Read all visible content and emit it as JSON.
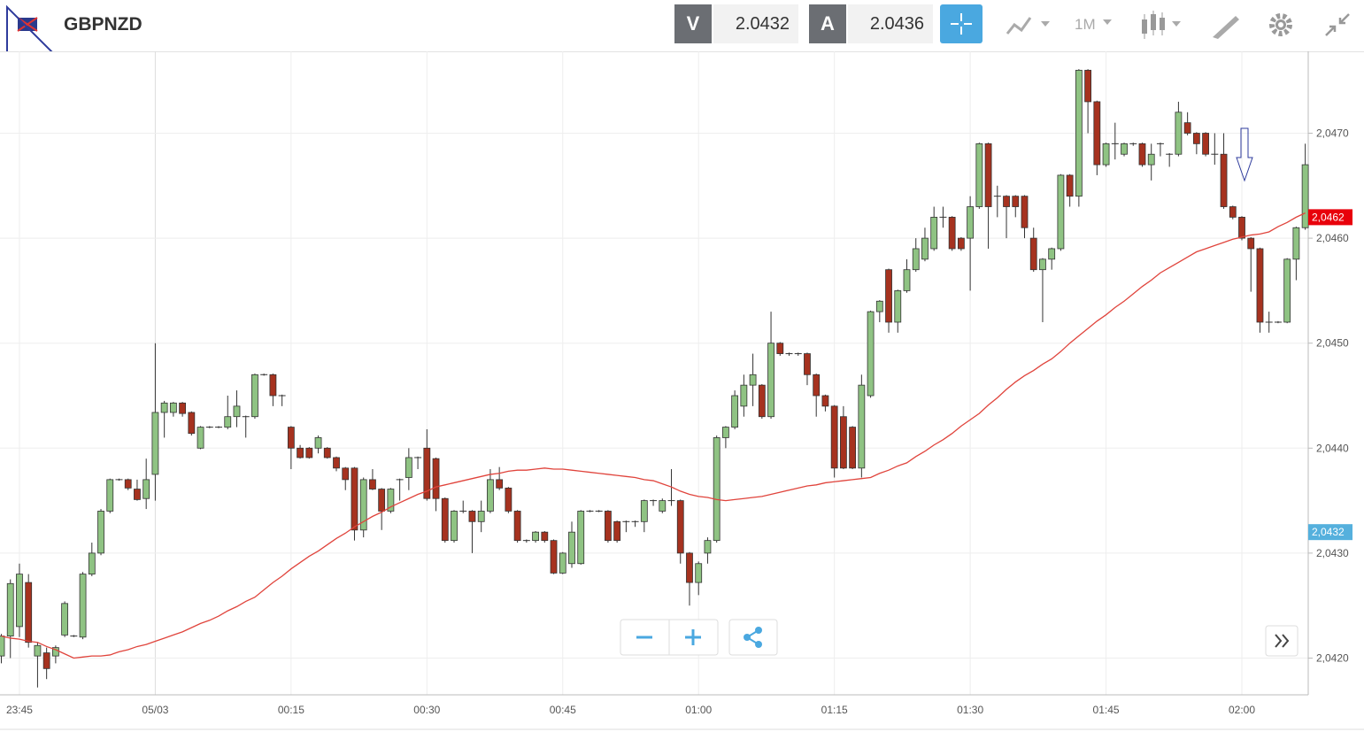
{
  "header": {
    "symbol": "GBPNZD",
    "bid_label": "V",
    "bid": "2.0432",
    "ask_label": "A",
    "ask": "2.0436",
    "timeframe": "1M"
  },
  "chart_data": {
    "type": "candlestick",
    "categories": [
      null,
      null,
      "23:45",
      null,
      null,
      null,
      null,
      null,
      null,
      null,
      null,
      null,
      null,
      null,
      null,
      null,
      null,
      "05/03",
      null,
      null,
      null,
      null,
      null,
      null,
      null,
      null,
      null,
      null,
      null,
      null,
      null,
      null,
      "00:15",
      null,
      null,
      null,
      null,
      null,
      null,
      null,
      null,
      null,
      null,
      null,
      null,
      null,
      null,
      "00:30",
      null,
      null,
      null,
      null,
      null,
      null,
      null,
      null,
      null,
      null,
      null,
      null,
      null,
      null,
      "00:45",
      null,
      null,
      null,
      null,
      null,
      null,
      null,
      null,
      null,
      null,
      null,
      null,
      null,
      null,
      "01:00",
      null,
      null,
      null,
      null,
      null,
      null,
      null,
      null,
      null,
      null,
      null,
      null,
      null,
      null,
      "01:15",
      null,
      null,
      null,
      null,
      null,
      null,
      null,
      null,
      null,
      null,
      null,
      null,
      null,
      null,
      "01:30",
      null,
      null,
      null,
      null,
      null,
      null,
      null,
      null,
      null,
      null,
      null,
      null,
      null,
      null,
      "01:45",
      null,
      null,
      null,
      null,
      null,
      null,
      null,
      null,
      null,
      null,
      null,
      null,
      null,
      null,
      "02:00",
      null,
      null,
      null,
      null,
      null,
      null,
      null
    ],
    "open": [
      2.04202,
      2.04221,
      2.0423,
      2.04272,
      2.04202,
      2.04205,
      2.04202,
      2.04222,
      2.04221,
      2.0422,
      2.0428,
      2.043,
      2.0434,
      2.0437,
      2.0437,
      2.04361,
      2.04352,
      2.04375,
      2.04434,
      2.04434,
      2.04443,
      2.04434,
      2.044,
      2.0442,
      2.0442,
      2.0442,
      2.0443,
      2.0443,
      2.0443,
      2.0447,
      2.0447,
      2.0445,
      2.0442,
      2.044,
      2.044,
      2.044,
      2.044,
      2.04391,
      2.04381,
      2.04381,
      2.04322,
      2.0437,
      2.04361,
      2.0434,
      2.0437,
      2.04372,
      2.04391,
      2.044,
      2.0439,
      2.04352,
      2.04312,
      2.0434,
      2.0434,
      2.0433,
      2.0434,
      2.0437,
      2.04362,
      2.0434,
      2.04312,
      2.04312,
      2.0432,
      2.04312,
      2.04281,
      2.0429,
      2.0429,
      2.0434,
      2.0434,
      2.0434,
      2.0433,
      2.0433,
      2.0433,
      2.0433,
      2.0435,
      2.0434,
      2.0435,
      2.0435,
      2.043,
      2.04272,
      2.043,
      2.04312,
      2.0441,
      2.0442,
      2.0444,
      2.0446,
      2.0446,
      2.0443,
      2.045,
      2.0449,
      2.0449,
      2.0449,
      2.0447,
      2.0445,
      2.0444,
      2.0443,
      2.0442,
      2.04381,
      2.0445,
      2.0453,
      2.0457,
      2.0452,
      2.0455,
      2.0457,
      2.0458,
      2.0459,
      2.0462,
      2.0462,
      2.046,
      2.046,
      2.0463,
      2.0469,
      2.0464,
      2.0464,
      2.0464,
      2.0464,
      2.046,
      2.0457,
      2.0458,
      2.0459,
      2.0466,
      2.0464,
      2.0476,
      2.0473,
      2.0467,
      2.0469,
      2.0468,
      2.0469,
      2.0469,
      2.0467,
      2.0469,
      2.0468,
      2.0468,
      2.0471,
      2.047,
      2.047,
      2.0468,
      2.0468,
      2.0463,
      2.0462,
      2.046,
      2.0459,
      2.0452,
      2.0452,
      2.0452,
      2.0458,
      2.0461
    ],
    "high": [
      2.04223,
      2.04275,
      2.0429,
      2.0428,
      2.04215,
      2.0421,
      2.04212,
      2.04254,
      2.04222,
      2.04282,
      2.0431,
      2.04342,
      2.04371,
      2.04371,
      2.04371,
      2.0437,
      2.0439,
      2.045,
      2.04445,
      2.04444,
      2.04444,
      2.04435,
      2.04421,
      2.04421,
      2.04421,
      2.0445,
      2.04455,
      2.04431,
      2.04471,
      2.04471,
      2.04471,
      2.04451,
      2.04421,
      2.04403,
      2.04401,
      2.04412,
      2.04401,
      2.04392,
      2.04382,
      2.04382,
      2.04372,
      2.0438,
      2.04362,
      2.04362,
      2.04371,
      2.044,
      2.04392,
      2.04418,
      2.04391,
      2.04353,
      2.04341,
      2.0435,
      2.04341,
      2.0435,
      2.0438,
      2.04382,
      2.04363,
      2.04341,
      2.04313,
      2.04321,
      2.04321,
      2.04313,
      2.04301,
      2.0433,
      2.04341,
      2.04341,
      2.04341,
      2.04341,
      2.04331,
      2.04331,
      2.04331,
      2.04351,
      2.04351,
      2.04352,
      2.0438,
      2.04351,
      2.04301,
      2.04292,
      2.04315,
      2.04412,
      2.04421,
      2.04455,
      2.0447,
      2.0449,
      2.04461,
      2.0453,
      2.04501,
      2.04491,
      2.04491,
      2.04491,
      2.04471,
      2.04451,
      2.04441,
      2.0444,
      2.04421,
      2.0447,
      2.04531,
      2.04541,
      2.04571,
      2.04551,
      2.0458,
      2.046,
      2.0461,
      2.0463,
      2.0463,
      2.04621,
      2.04601,
      2.0464,
      2.04691,
      2.04691,
      2.0465,
      2.04641,
      2.04641,
      2.04641,
      2.0461,
      2.04581,
      2.04591,
      2.04661,
      2.04661,
      2.04761,
      2.04761,
      2.04731,
      2.04691,
      2.0471,
      2.04691,
      2.04691,
      2.04691,
      2.0469,
      2.04691,
      2.04681,
      2.0473,
      2.0472,
      2.04701,
      2.04701,
      2.047,
      2.047,
      2.04631,
      2.04621,
      2.04601,
      2.04591,
      2.0453,
      2.04521,
      2.04581,
      2.04611,
      2.0469
    ],
    "low": [
      2.04195,
      2.042,
      2.0422,
      2.0421,
      2.04172,
      2.0418,
      2.04195,
      2.0422,
      2.0422,
      2.04218,
      2.04278,
      2.04298,
      2.04338,
      2.04369,
      2.0436,
      2.0435,
      2.04342,
      2.0435,
      2.0441,
      2.0443,
      2.0443,
      2.04412,
      2.04399,
      2.04419,
      2.04419,
      2.04418,
      2.0442,
      2.0441,
      2.04428,
      2.04469,
      2.0444,
      2.0444,
      2.0438,
      2.0439,
      2.0439,
      2.04395,
      2.0439,
      2.04378,
      2.0436,
      2.04312,
      2.04315,
      2.0436,
      2.04322,
      2.04338,
      2.0435,
      2.0436,
      2.0438,
      2.0435,
      2.0434,
      2.0431,
      2.0431,
      2.04338,
      2.043,
      2.0432,
      2.04338,
      2.0436,
      2.04338,
      2.0431,
      2.0431,
      2.0431,
      2.0431,
      2.0428,
      2.0428,
      2.04286,
      2.04289,
      2.04339,
      2.04339,
      2.0431,
      2.0431,
      2.0432,
      2.04325,
      2.0432,
      2.04345,
      2.04338,
      2.04345,
      2.0429,
      2.0425,
      2.0426,
      2.0429,
      2.0431,
      2.044,
      2.04418,
      2.0443,
      2.0444,
      2.04428,
      2.04428,
      2.04488,
      2.04488,
      2.04488,
      2.0446,
      2.0443,
      2.04435,
      2.04372,
      2.0438,
      2.0438,
      2.04372,
      2.04448,
      2.0452,
      2.0451,
      2.0451,
      2.04548,
      2.04568,
      2.04578,
      2.04588,
      2.0461,
      2.04588,
      2.04588,
      2.0455,
      2.04628,
      2.0459,
      2.0462,
      2.046,
      2.0462,
      2.046,
      2.04568,
      2.0452,
      2.0457,
      2.04588,
      2.0463,
      2.0463,
      2.047,
      2.0466,
      2.04668,
      2.04675,
      2.04678,
      2.04688,
      2.04668,
      2.04655,
      2.04678,
      2.04668,
      2.04678,
      2.04698,
      2.0468,
      2.04678,
      2.0467,
      2.04628,
      2.04618,
      2.04598,
      2.04549,
      2.0451,
      2.0451,
      2.04519,
      2.04519,
      2.0456,
      2.04608
    ],
    "close": [
      2.04221,
      2.04271,
      2.0428,
      2.04215,
      2.04212,
      2.0419,
      2.0421,
      2.04252,
      2.04221,
      2.0428,
      2.043,
      2.0434,
      2.0437,
      2.0437,
      2.04362,
      2.04351,
      2.0437,
      2.04434,
      2.04443,
      2.04443,
      2.04433,
      2.04414,
      2.0442,
      2.0442,
      2.0442,
      2.0443,
      2.0444,
      2.0443,
      2.0447,
      2.0447,
      2.0445,
      2.0445,
      2.044,
      2.04391,
      2.04391,
      2.0441,
      2.04391,
      2.04381,
      2.0437,
      2.04322,
      2.0437,
      2.04361,
      2.0434,
      2.04361,
      2.0437,
      2.04391,
      2.04391,
      2.04352,
      2.04352,
      2.04312,
      2.0434,
      2.0434,
      2.0433,
      2.0434,
      2.0437,
      2.04362,
      2.0434,
      2.04312,
      2.04312,
      2.0432,
      2.04312,
      2.04281,
      2.043,
      2.0432,
      2.0434,
      2.0434,
      2.0434,
      2.04312,
      2.04312,
      2.0433,
      2.0433,
      2.0435,
      2.0435,
      2.0435,
      2.0435,
      2.043,
      2.04272,
      2.0429,
      2.04312,
      2.0441,
      2.0442,
      2.0445,
      2.0446,
      2.0447,
      2.0443,
      2.045,
      2.0449,
      2.0449,
      2.0449,
      2.0447,
      2.0445,
      2.0444,
      2.04381,
      2.04381,
      2.04381,
      2.0446,
      2.0453,
      2.0454,
      2.0452,
      2.0455,
      2.0457,
      2.0459,
      2.046,
      2.0462,
      2.0462,
      2.0459,
      2.0459,
      2.0463,
      2.0469,
      2.0463,
      2.0464,
      2.0463,
      2.0463,
      2.0461,
      2.0457,
      2.0458,
      2.0459,
      2.0466,
      2.0464,
      2.0476,
      2.0473,
      2.0467,
      2.0469,
      2.0469,
      2.0469,
      2.0469,
      2.0467,
      2.0468,
      2.0469,
      2.0468,
      2.0472,
      2.047,
      2.0469,
      2.0468,
      2.0468,
      2.0463,
      2.0462,
      2.046,
      2.0459,
      2.0452,
      2.0452,
      2.0452,
      2.0458,
      2.0461,
      2.0467
    ],
    "up_color": "#8fc383",
    "down_color": "#a6321f",
    "moving_average": {
      "color": "#e0443c",
      "values": [
        2.04221,
        2.04219,
        2.04218,
        2.04216,
        2.04215,
        2.04211,
        2.04208,
        2.04204,
        2.042,
        2.04201,
        2.04202,
        2.04202,
        2.04203,
        2.04206,
        2.04208,
        2.04211,
        2.04213,
        2.04216,
        2.04219,
        2.04222,
        2.04225,
        2.04229,
        2.04233,
        2.04236,
        2.0424,
        2.04245,
        2.04249,
        2.04254,
        2.04258,
        2.04265,
        2.04272,
        2.04278,
        2.04285,
        2.04291,
        2.04297,
        2.04302,
        2.04308,
        2.04314,
        2.04319,
        2.04325,
        2.0433,
        2.04335,
        2.04339,
        2.04344,
        2.04348,
        2.04352,
        2.04356,
        2.04359,
        2.04363,
        2.04365,
        2.04367,
        2.04369,
        2.04371,
        2.04373,
        2.04375,
        2.04376,
        2.04378,
        2.04379,
        2.04379,
        2.0438,
        2.04381,
        2.0438,
        2.0438,
        2.04379,
        2.04378,
        2.04377,
        2.04376,
        2.04375,
        2.04374,
        2.04373,
        2.04372,
        2.0437,
        2.04369,
        2.04366,
        2.04363,
        2.04359,
        2.04356,
        2.04354,
        2.04353,
        2.04351,
        2.0435,
        2.04351,
        2.04352,
        2.04353,
        2.04354,
        2.04356,
        2.04358,
        2.0436,
        2.04362,
        2.04364,
        2.04365,
        2.04367,
        2.04368,
        2.04369,
        2.0437,
        2.04371,
        2.04372,
        2.04376,
        2.04379,
        2.04383,
        2.04386,
        2.04392,
        2.04397,
        2.04403,
        2.04408,
        2.04414,
        2.04421,
        2.04427,
        2.04433,
        2.04441,
        2.04448,
        2.04456,
        2.04463,
        2.04469,
        2.04474,
        2.0448,
        2.04485,
        2.04492,
        2.045,
        2.04507,
        2.04514,
        2.04521,
        2.04527,
        2.04534,
        2.0454,
        2.04547,
        2.04554,
        2.0456,
        2.04567,
        2.04572,
        2.04577,
        2.04582,
        2.04587,
        2.0459,
        2.04593,
        2.04596,
        2.04599,
        2.04601,
        2.04603,
        2.04604,
        2.04606,
        2.04611,
        2.04615,
        2.0462,
        2.04624
      ]
    },
    "ylim": [
      2.04165,
      2.04778
    ],
    "yticks": [
      {
        "value": 2.042,
        "label": "2,0420"
      },
      {
        "value": 2.043,
        "label": "2,0430"
      },
      {
        "value": 2.044,
        "label": "2,0440"
      },
      {
        "value": 2.045,
        "label": "2,0450"
      },
      {
        "value": 2.046,
        "label": "2,0460"
      },
      {
        "value": 2.047,
        "label": "2,0470"
      }
    ],
    "grid": true,
    "price_tags": [
      {
        "value": 2.0462,
        "label": "2,0462",
        "color": "#e8000b"
      },
      {
        "value": 2.0432,
        "label": "2,0432",
        "color": "#55b0dd"
      }
    ]
  }
}
